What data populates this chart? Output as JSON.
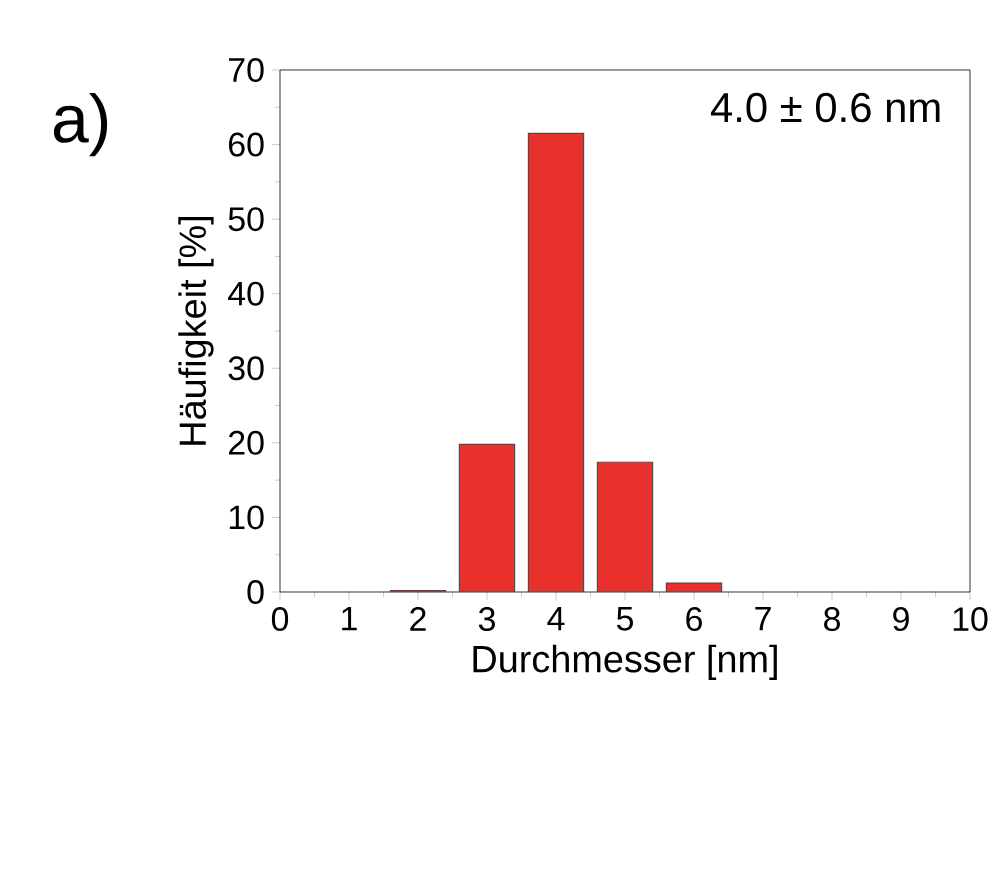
{
  "chart_data": {
    "type": "bar",
    "title": "a)",
    "xlabel": "Durchmesser [nm]",
    "ylabel": "Häufigkeit [%]",
    "x": [
      2,
      3,
      4,
      5,
      6
    ],
    "values": [
      0.2,
      19.8,
      61.5,
      17.4,
      1.2
    ],
    "color": "#e8302c",
    "xlim": [
      0,
      10
    ],
    "xticks": [
      0,
      1,
      2,
      3,
      4,
      5,
      6,
      7,
      8,
      9,
      10
    ],
    "ylim": [
      0,
      70
    ],
    "yticks": [
      0,
      10,
      20,
      30,
      40,
      50,
      60,
      70
    ],
    "annotations": [
      "4.0 ± 0.6 nm"
    ]
  }
}
